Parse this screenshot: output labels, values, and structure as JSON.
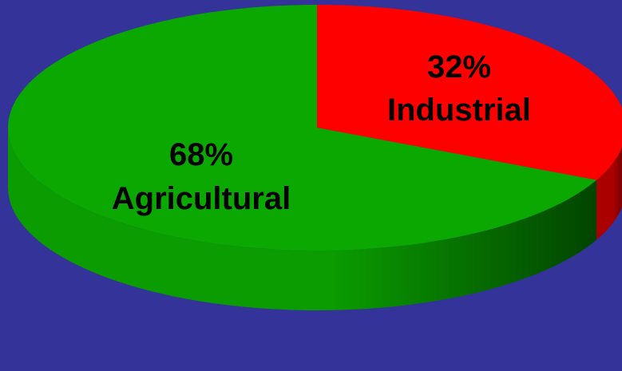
{
  "chart_data": {
    "type": "pie",
    "style": "3d",
    "title": "",
    "slices": [
      {
        "label": "Industrial",
        "value": 32,
        "value_text": "32%",
        "color": "#ff0000",
        "side_color_light": "#cc0000",
        "side_color_dark": "#660000"
      },
      {
        "label": "Agricultural",
        "value": 68,
        "value_text": "68%",
        "color": "#0aa800",
        "side_color_light": "#0a9c00",
        "side_color_dark": "#024400"
      }
    ]
  },
  "colors": {
    "background": "#333399"
  }
}
